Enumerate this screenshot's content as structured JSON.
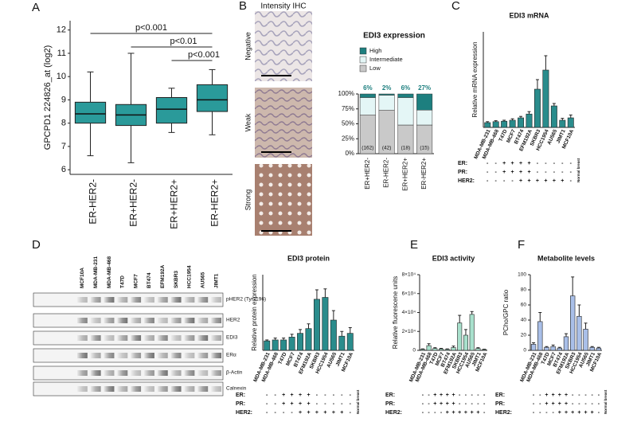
{
  "panels": [
    "A",
    "B",
    "C",
    "D",
    "E",
    "F"
  ],
  "ihc": {
    "title": "Intensity IHC",
    "rows": [
      "Negative",
      "Weak",
      "Strong"
    ]
  },
  "blot": {
    "lanes": [
      "MCF10A",
      "MDA-MB-231",
      "MDA-MB-468",
      "T47D",
      "MCF7",
      "BT474",
      "EFM192A",
      "SKBR3",
      "HCC1954",
      "AU565",
      "JIMT1"
    ],
    "rows": [
      "pHER2 (Tyr1196)",
      "HER2",
      "EDI3",
      "ERα",
      "β-Actin",
      "Calnexin"
    ]
  },
  "chart_data": [
    {
      "type": "box",
      "ylabel": "GPCPD1 224826_at (log2)",
      "color": "#2a9a9a",
      "categories": [
        "ER-HER2-",
        "ER+HER2-",
        "ER+HER2+",
        "ER-HER2+"
      ],
      "boxes": [
        {
          "min": 6.6,
          "q1": 8.0,
          "median": 8.4,
          "q3": 8.9,
          "max": 10.2
        },
        {
          "min": 6.3,
          "q1": 7.9,
          "median": 8.35,
          "q3": 8.8,
          "max": 11.0
        },
        {
          "min": 7.6,
          "q1": 8.0,
          "median": 8.6,
          "q3": 9.1,
          "max": 9.5
        },
        {
          "min": 7.5,
          "q1": 8.5,
          "median": 9.0,
          "q3": 9.65,
          "max": 10.3
        }
      ],
      "comparisons": [
        {
          "label": "p<0.001",
          "groups": [
            "ER-HER2-",
            "ER-HER2+"
          ]
        },
        {
          "label": "p<0.01",
          "groups": [
            "ER+HER2-",
            "ER-HER2+"
          ]
        },
        {
          "label": "p<0.001",
          "groups": [
            "ER+HER2+",
            "ER-HER2+"
          ]
        }
      ],
      "ylim": [
        5.8,
        12.4
      ],
      "yticks": [
        6,
        7,
        8,
        9,
        10,
        11,
        12
      ]
    },
    {
      "type": "stacked_bar",
      "title": "EDI3 expression",
      "categories": [
        "ER+HER2-",
        "ER-HER2-",
        "ER+HER2+",
        "ER-HER2+"
      ],
      "series": [
        {
          "name": "Low",
          "color": "#c9c9c9",
          "values": [
            65,
            73,
            48,
            48
          ]
        },
        {
          "name": "Intermediate",
          "color": "#e4f6f6",
          "values": [
            29,
            25,
            46,
            25
          ]
        },
        {
          "name": "High",
          "color": "#1d7f7f",
          "values": [
            6,
            2,
            6,
            27
          ],
          "value_labels": [
            "6%",
            "2%",
            "6%",
            "27%"
          ]
        }
      ],
      "n": [
        162,
        42,
        18,
        15
      ],
      "n_labels": [
        "(162)",
        "(42)",
        "(18)",
        "(15)"
      ],
      "ylim": [
        0,
        100
      ],
      "yticks": [
        {
          "value": 0,
          "label": "0%"
        },
        {
          "value": 25,
          "label": "25%"
        },
        {
          "value": 50,
          "label": "50%"
        },
        {
          "value": 75,
          "label": "75%"
        },
        {
          "value": 100,
          "label": "100%"
        }
      ]
    },
    {
      "type": "bar",
      "title": "EDI3 mRNA",
      "ylabel": "Relative mRNA expression",
      "color": "#2a8c8c",
      "categories": [
        "MDA-MB-231",
        "MDA-MB-468",
        "T47D",
        "MCF7",
        "BT474",
        "EFM192A",
        "SKBR3",
        "HCC1954",
        "AU565",
        "JIMT1",
        "MCF10A"
      ],
      "values": [
        1,
        1.2,
        1.3,
        1.5,
        2,
        2.8,
        8,
        12,
        4.5,
        1.5,
        2
      ],
      "errors": [
        0.2,
        0.2,
        0.2,
        0.3,
        0.3,
        0.5,
        2,
        3,
        0.5,
        0.4,
        0.6
      ],
      "ylim": [
        0,
        20
      ],
      "signs": {
        "labels": [
          "ER:",
          "PR:",
          "HER2:"
        ],
        "rows": [
          [
            "-",
            "-",
            "+",
            "+",
            "+",
            "+",
            "-",
            "-",
            "-",
            "-",
            "-"
          ],
          [
            "-",
            "-",
            "+",
            "+",
            "+",
            "+",
            "-",
            "-",
            "-",
            "-",
            "-"
          ],
          [
            "-",
            "-",
            "-",
            "-",
            "+",
            "+",
            "+",
            "+",
            "+",
            "+",
            "-"
          ]
        ],
        "note": "Normal breast"
      }
    },
    {
      "type": "bar",
      "title": "EDI3 protein",
      "ylabel": "Relative protein expression",
      "color": "#2a8c8c",
      "categories": [
        "MDA-MB-231",
        "MDA-MB-468",
        "T47D",
        "MCF7",
        "BT474",
        "EFM192A",
        "SKBR3",
        "HCC1954",
        "AU565",
        "JIMT1",
        "MCF10A"
      ],
      "values": [
        1,
        1.1,
        1.1,
        1.4,
        1.8,
        2.3,
        5.4,
        5.6,
        3.2,
        1.5,
        1.8
      ],
      "errors": [
        0.1,
        0.2,
        0.2,
        0.3,
        0.4,
        0.5,
        1,
        0.9,
        1,
        0.5,
        0.6
      ],
      "ylim": [
        0,
        8
      ],
      "signs": {
        "labels": [
          "ER:",
          "PR:",
          "HER2:"
        ],
        "rows": [
          [
            "-",
            "-",
            "+",
            "+",
            "+",
            "+",
            "-",
            "-",
            "-",
            "-",
            "-"
          ],
          [
            "-",
            "-",
            "+",
            "+",
            "+",
            "+",
            "-",
            "-",
            "-",
            "-",
            "-"
          ],
          [
            "-",
            "-",
            "-",
            "-",
            "+",
            "+",
            "+",
            "+",
            "+",
            "+",
            "-"
          ]
        ],
        "note": "Normal breast"
      }
    },
    {
      "type": "bar",
      "title": "EDI3 activity",
      "ylabel": "Relative fluorescene units",
      "color": "#a8e0cc",
      "categories": [
        "MDA-MB-231",
        "MDA-MB-468",
        "T47D",
        "MCF7",
        "BT474",
        "EFM192A",
        "SKBR3",
        "HCC1954",
        "AU565",
        "JIMT1",
        "MCF10A"
      ],
      "values": [
        1000,
        5000,
        2000,
        1500,
        1000,
        3000,
        29000,
        16000,
        38000,
        2000,
        800
      ],
      "errors": [
        500,
        2000,
        800,
        600,
        500,
        1500,
        8000,
        6000,
        3000,
        800,
        400
      ],
      "ylim": [
        0,
        80000
      ],
      "yticks": [
        0,
        {
          "value": 20000,
          "label": "2×10⁴"
        },
        {
          "value": 40000,
          "label": "4×10⁴"
        },
        {
          "value": 60000,
          "label": "6×10⁴"
        },
        {
          "value": 80000,
          "label": "8×10⁴"
        }
      ],
      "signs": {
        "labels": [
          "ER:",
          "PR:",
          "HER2:"
        ],
        "rows": [
          [
            "-",
            "-",
            "+",
            "+",
            "+",
            "+",
            "-",
            "-",
            "-",
            "-",
            "-"
          ],
          [
            "-",
            "-",
            "+",
            "+",
            "+",
            "+",
            "-",
            "-",
            "-",
            "-",
            "-"
          ],
          [
            "-",
            "-",
            "-",
            "-",
            "+",
            "+",
            "+",
            "+",
            "+",
            "+",
            "-"
          ]
        ]
      }
    },
    {
      "type": "bar",
      "title": "Metabolite levels",
      "ylabel": "PCho/GPC ratio",
      "color": "#a9bfe8",
      "categories": [
        "MDA-MB-231",
        "MDA-MB-468",
        "T47D",
        "MCF7",
        "BT474",
        "EFM192A",
        "SKBR3",
        "HCC1954",
        "AU565",
        "JIMT1",
        "MCF10A"
      ],
      "values": [
        8,
        38,
        4,
        5,
        3,
        18,
        72,
        45,
        28,
        4,
        3
      ],
      "errors": [
        2,
        12,
        1,
        2,
        1,
        4,
        25,
        15,
        8,
        1,
        1
      ],
      "ylim": [
        0,
        100
      ],
      "yticks": [
        0,
        20,
        40,
        60,
        80,
        100
      ],
      "signs": {
        "labels": [
          "ER:",
          "PR:",
          "HER2:"
        ],
        "rows": [
          [
            "-",
            "-",
            "+",
            "+",
            "+",
            "+",
            "-",
            "-",
            "-",
            "-",
            "-"
          ],
          [
            "-",
            "-",
            "+",
            "+",
            "+",
            "+",
            "-",
            "-",
            "-",
            "-",
            "-"
          ],
          [
            "-",
            "-",
            "-",
            "-",
            "+",
            "+",
            "+",
            "+",
            "+",
            "+",
            "-"
          ]
        ],
        "note": "Normal breast"
      }
    }
  ]
}
